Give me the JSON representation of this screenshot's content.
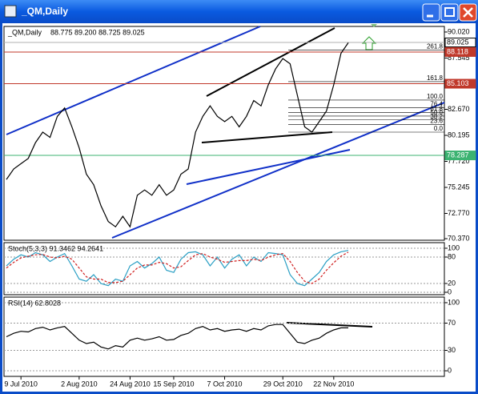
{
  "window": {
    "title": "_QM,Daily"
  },
  "chart_data": [
    {
      "type": "line",
      "title": "_QM,Daily",
      "subtitle": "88.775 89.200 88.725 89.025",
      "categories": [
        null,
        null,
        "9 Jul 2010",
        null,
        null,
        null,
        null,
        null,
        null,
        null,
        "2 Aug 2010",
        null,
        null,
        null,
        null,
        null,
        null,
        "24 Aug 2010",
        null,
        null,
        null,
        null,
        null,
        "15 Sep 2010",
        null,
        null,
        null,
        null,
        null,
        null,
        "7 Oct 2010",
        null,
        null,
        null,
        null,
        null,
        null,
        null,
        "29 Oct 2010",
        null,
        null,
        null,
        null,
        null,
        null,
        "22 Nov 2010",
        null,
        null
      ],
      "color": "#000000",
      "values": [
        76.0,
        77.0,
        77.5,
        78.0,
        79.5,
        80.5,
        80.0,
        82.0,
        82.8,
        81.0,
        79.0,
        76.5,
        75.5,
        73.5,
        72.0,
        71.5,
        72.5,
        71.5,
        74.5,
        75.0,
        74.5,
        75.5,
        74.5,
        75.0,
        76.5,
        77.0,
        80.5,
        82.0,
        83.0,
        82.0,
        81.5,
        82.0,
        81.0,
        82.0,
        83.5,
        83.0,
        85.0,
        86.5,
        87.5,
        87.0,
        84.0,
        81.0,
        80.5,
        81.5,
        82.5,
        85.0,
        88.0,
        89.0
      ],
      "ylim": [
        70.22,
        90.55
      ],
      "yticks": [
        {
          "value": 90.02,
          "label": "90.020"
        },
        {
          "value": 87.545,
          "label": "87.545"
        },
        {
          "value": 82.67,
          "label": "82.670"
        },
        {
          "value": 80.195,
          "label": "80.195"
        },
        {
          "value": 77.72,
          "label": "77.720"
        },
        {
          "value": 75.245,
          "label": "75.245"
        },
        {
          "value": 72.77,
          "label": "72.770"
        },
        {
          "value": 70.37,
          "label": "70.370"
        }
      ],
      "grid": false,
      "price_labels": [
        {
          "value": 89.025,
          "label": "89.025",
          "color": "#ffffff"
        },
        {
          "value": 88.118,
          "label": "88.118",
          "color": "#c0392b"
        },
        {
          "value": 85.103,
          "label": "85.103",
          "color": "#c0392b"
        },
        {
          "value": 78.287,
          "label": "78.287",
          "color": "#3cb371"
        }
      ],
      "fib_levels": [
        {
          "value": 88.3,
          "label": "261.8"
        },
        {
          "value": 85.3,
          "label": "161.8"
        },
        {
          "value": 83.55,
          "label": "100.0"
        },
        {
          "value": 82.83,
          "label": "76.4"
        },
        {
          "value": 82.38,
          "label": "61.8"
        },
        {
          "value": 82.03,
          "label": "50.0"
        },
        {
          "value": 81.66,
          "label": "38.2"
        },
        {
          "value": 81.22,
          "label": "23.6"
        },
        {
          "value": 80.5,
          "label": "0.0"
        }
      ]
    },
    {
      "type": "line",
      "title": "Stoch(5,3,3) 91.3462 94.2641",
      "series": [
        {
          "color": "#2a9fc4",
          "values": [
            60,
            75,
            85,
            80,
            90,
            85,
            70,
            80,
            88,
            60,
            30,
            25,
            40,
            20,
            15,
            30,
            25,
            60,
            70,
            55,
            65,
            80,
            50,
            45,
            75,
            90,
            92,
            85,
            60,
            80,
            55,
            75,
            85,
            60,
            80,
            70,
            90,
            88,
            85,
            40,
            20,
            15,
            30,
            45,
            70,
            85,
            92,
            95
          ]
        },
        {
          "color": "#d02020",
          "dash": true,
          "values": [
            55,
            68,
            78,
            82,
            85,
            86,
            80,
            78,
            82,
            75,
            55,
            35,
            30,
            30,
            22,
            22,
            25,
            40,
            55,
            62,
            62,
            68,
            65,
            55,
            58,
            72,
            85,
            88,
            80,
            75,
            68,
            70,
            72,
            72,
            75,
            72,
            80,
            85,
            88,
            70,
            45,
            25,
            20,
            30,
            50,
            67,
            82,
            91
          ]
        }
      ],
      "ylim": [
        -5.5,
        112.7
      ],
      "yticks": [
        100,
        80,
        20,
        0
      ],
      "grid": true
    },
    {
      "type": "line",
      "title": "RSI(14) 62.8028",
      "series": [
        {
          "color": "#000000",
          "values": [
            50,
            55,
            58,
            57,
            62,
            64,
            60,
            63,
            65,
            55,
            45,
            40,
            42,
            35,
            32,
            37,
            35,
            45,
            48,
            45,
            47,
            50,
            45,
            46,
            52,
            55,
            62,
            65,
            60,
            62,
            58,
            60,
            61,
            58,
            62,
            60,
            66,
            68,
            68,
            55,
            42,
            40,
            45,
            48,
            55,
            60,
            63,
            63
          ]
        }
      ],
      "ylim": [
        -8.2,
        108.2
      ],
      "yticks": [
        100,
        70,
        30,
        0
      ],
      "grid": true
    }
  ]
}
